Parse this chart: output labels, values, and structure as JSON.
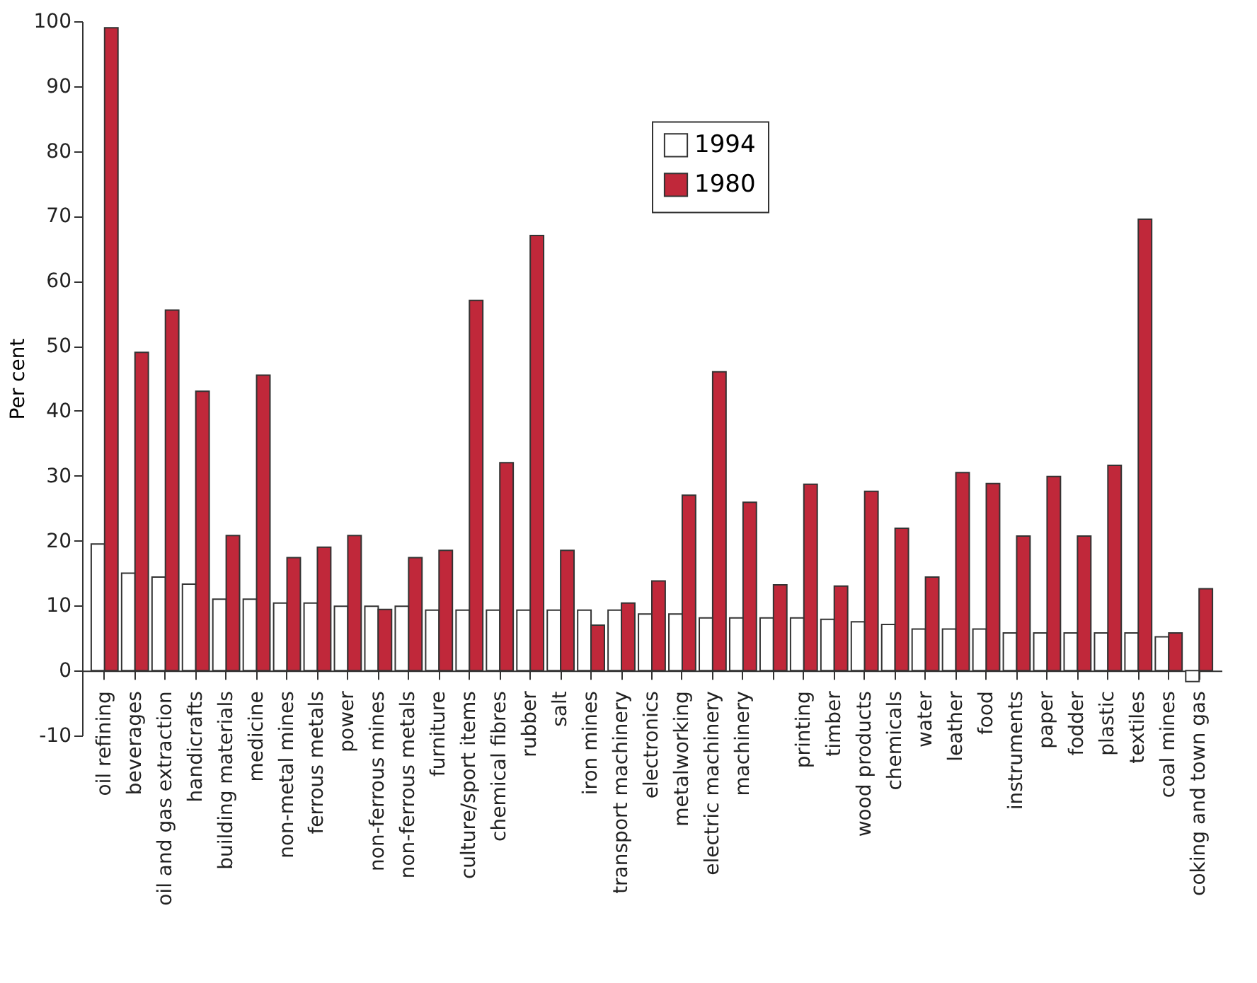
{
  "chart_data": {
    "type": "bar",
    "ylabel": "Per cent",
    "categories": [
      "oil refining",
      "beverages",
      "oil and gas extraction",
      "handicrafts",
      "building materials",
      "medicine",
      "non-metal mines",
      "ferrous metals",
      "power",
      "non-ferrous mines",
      "non-ferrous metals",
      "furniture",
      "culture/sport items",
      "chemical fibres",
      "rubber",
      "salt",
      "iron mines",
      "transport machinery",
      "electronics",
      "metalworking",
      "electric machinery",
      "machinery",
      null,
      "printing",
      "timber",
      "wood products",
      "chemicals",
      "water",
      "leather",
      "food",
      "instruments",
      "paper",
      "fodder",
      "plastic",
      "textiles",
      "coal mines",
      "coking and town gas"
    ],
    "series": [
      {
        "name": "1994",
        "color": "#ffffff",
        "values": [
          19.5,
          15,
          14.4,
          13.3,
          11,
          11,
          10.4,
          10.4,
          9.9,
          9.9,
          9.9,
          9.3,
          9.3,
          9.3,
          9.3,
          9.3,
          9.3,
          9.3,
          8.7,
          8.7,
          8.1,
          8.1,
          8.1,
          8.1,
          7.9,
          7.5,
          7.1,
          6.4,
          6.4,
          6.4,
          5.8,
          5.8,
          5.8,
          5.8,
          5.8,
          5.2,
          -1.7
        ]
      },
      {
        "name": "1980",
        "color": "#c0283a",
        "values": [
          99,
          49,
          55.5,
          43,
          20.8,
          45.5,
          17.4,
          19,
          20.8,
          9.4,
          17.4,
          18.5,
          57,
          32,
          67,
          18.5,
          7,
          10.4,
          13.8,
          27,
          46,
          25.9,
          13.2,
          28.7,
          13,
          27.6,
          21.9,
          14.4,
          30.5,
          28.8,
          20.7,
          29.9,
          20.7,
          31.6,
          69.5,
          5.8,
          12.6
        ]
      }
    ],
    "ylim": [
      -10,
      100
    ],
    "yticks": [
      -10,
      0,
      10,
      20,
      30,
      40,
      50,
      60,
      70,
      80,
      90,
      100
    ],
    "grid": false,
    "legend": "top"
  }
}
